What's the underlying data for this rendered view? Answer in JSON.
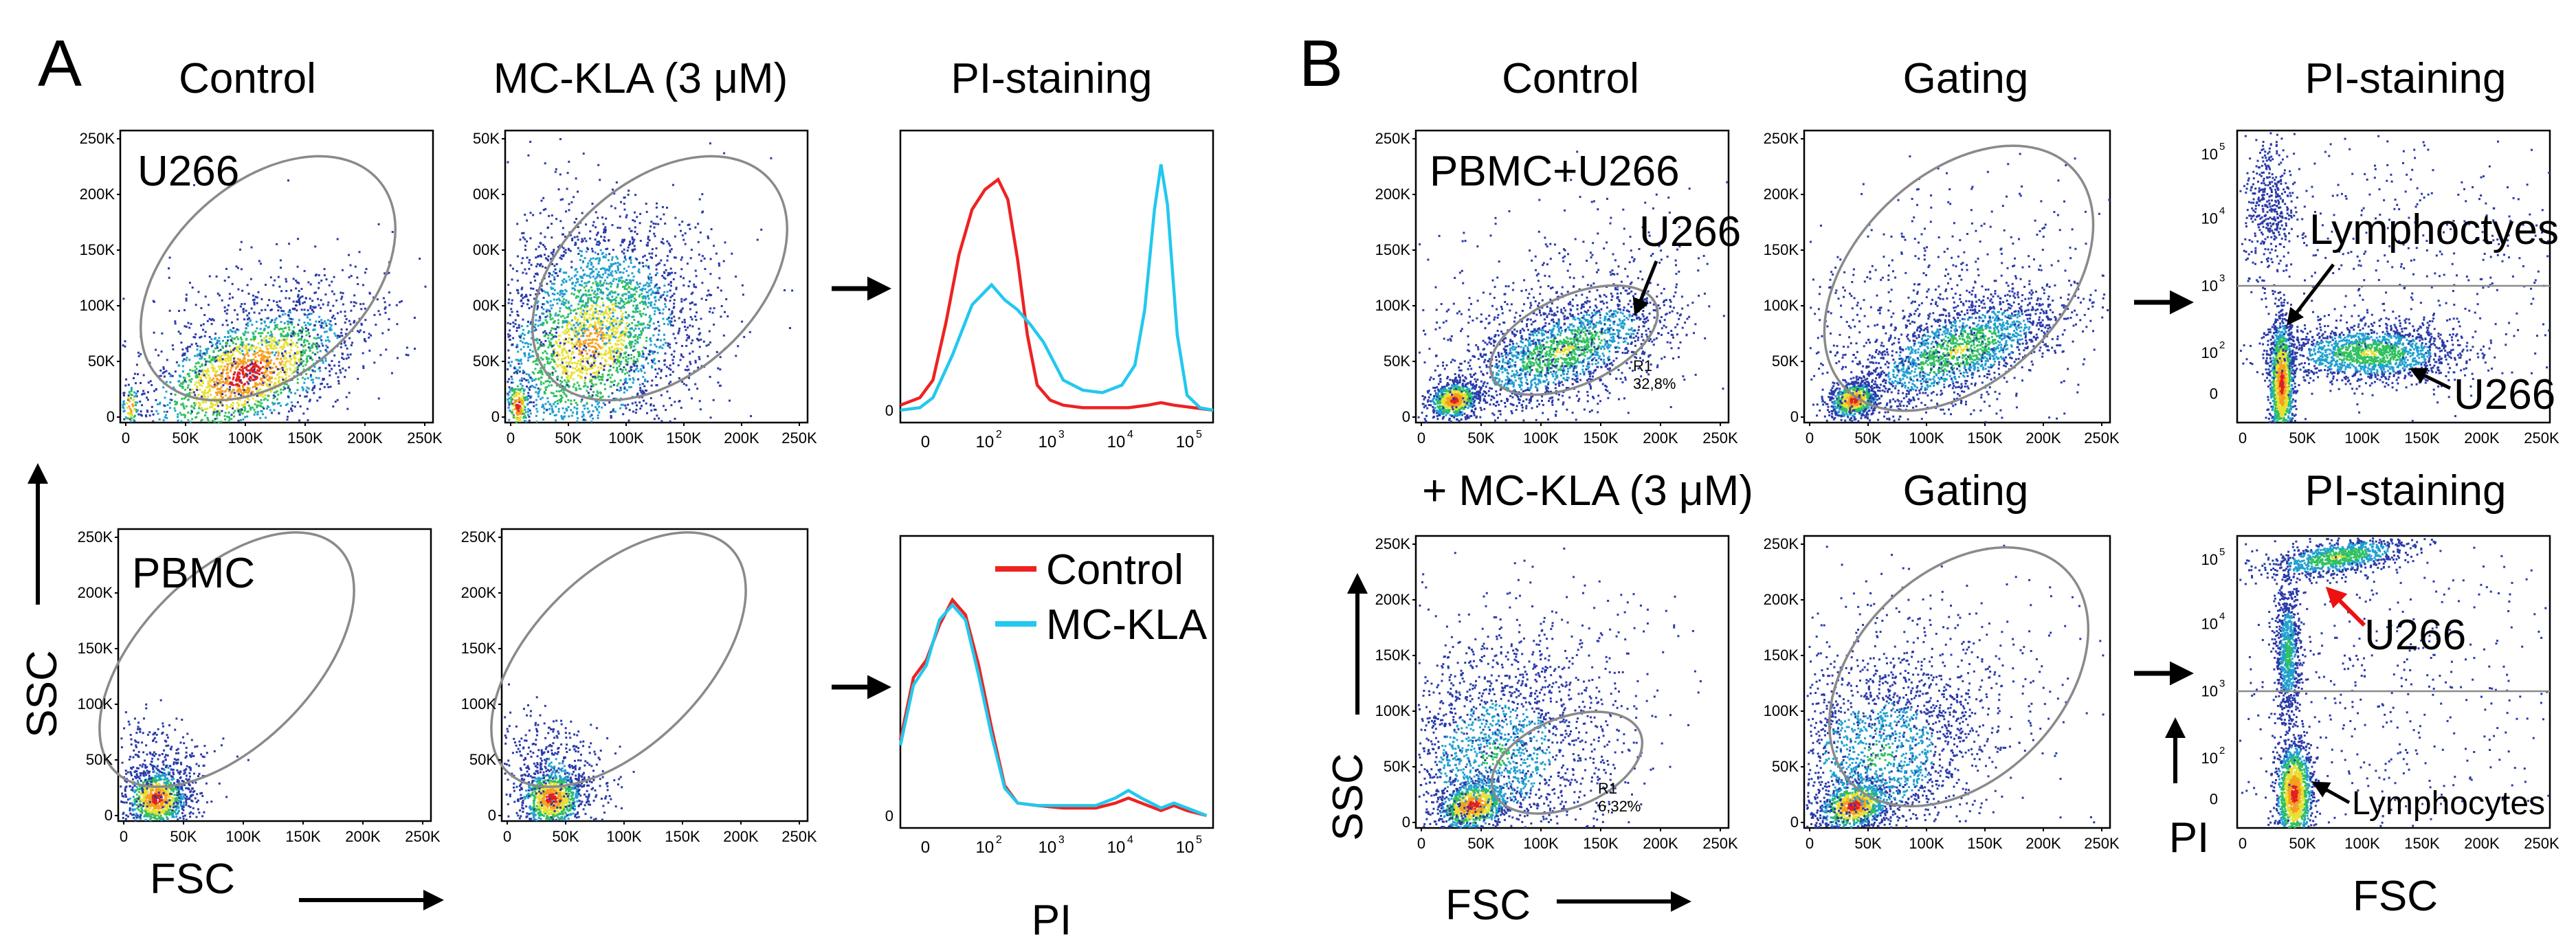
{
  "panels": {
    "A": {
      "letter": "A",
      "col_titles": [
        "Control",
        "MC-KLA (3 μM)",
        "PI-staining"
      ],
      "axis_ssc": "SSC",
      "axis_fsc": "FSC",
      "axis_pi": "PI",
      "sample_u266": "U266",
      "sample_pbmc": "PBMC",
      "legend": {
        "control": "Control",
        "mcla": "MC-KLA"
      }
    },
    "B": {
      "letter": "B",
      "top_titles": [
        "Control",
        "Gating",
        "PI-staining"
      ],
      "bottom_titles": [
        "+ MC-KLA  (3 μM)",
        "Gating",
        "PI-staining"
      ],
      "sample_label": "PBMC+U266",
      "u266_gate_label": "U266",
      "r1_top": {
        "name": "R1",
        "percent": "32,8%"
      },
      "r1_bottom": {
        "name": "R1",
        "percent": "6,32%"
      },
      "lymphoctyes": "Lymphoctyes",
      "u266_live": "U266",
      "u266_dead": "U266",
      "lymphocytes": "Lymphocytes",
      "axis_ssc": "SSC",
      "axis_fsc": "FSC",
      "axis_pi": "PI"
    }
  },
  "ticks": {
    "linear_y": [
      "0",
      "50K",
      "100K",
      "150K",
      "200K",
      "250K"
    ],
    "linear_y_cropped": [
      "0",
      "50K",
      "00K",
      "00K",
      "00K",
      "50K"
    ],
    "linear_x": [
      "0",
      "50K",
      "100K",
      "150K",
      "200K",
      "250K"
    ],
    "log_x": [
      "0",
      "10",
      "10",
      "10",
      "10"
    ],
    "log_exp": [
      "2",
      "3",
      "4",
      "5"
    ],
    "log_y": [
      "0",
      "10",
      "10",
      "10",
      "10"
    ],
    "hist_zero": "0"
  },
  "colors": {
    "control_red": "#ee2222",
    "mcla_cyan": "#22c8ee",
    "arrow_red": "#ee1111",
    "gate_gray": "#8a8a8a"
  },
  "chart_data": {
    "type": "histogram",
    "histograms": [
      {
        "panel": "A-top PI-staining (U266)",
        "xscale": "log",
        "xlim": [
          0.5,
          5.3
        ],
        "ylim": [
          0,
          1
        ],
        "series": [
          {
            "name": "Control",
            "color": "#ee2222",
            "x": [
              0.5,
              0.8,
              1.0,
              1.2,
              1.4,
              1.6,
              1.8,
              2.0,
              2.15,
              2.3,
              2.45,
              2.6,
              2.8,
              3.0,
              3.3,
              3.6,
              4.0,
              4.3,
              4.5,
              4.7,
              5.0,
              5.3
            ],
            "y": [
              0.02,
              0.05,
              0.12,
              0.35,
              0.62,
              0.8,
              0.88,
              0.92,
              0.84,
              0.6,
              0.3,
              0.1,
              0.04,
              0.02,
              0.01,
              0.01,
              0.01,
              0.02,
              0.03,
              0.02,
              0.01,
              0.0
            ]
          },
          {
            "name": "MC-KLA",
            "color": "#22c8ee",
            "x": [
              0.5,
              0.8,
              1.0,
              1.3,
              1.6,
              1.9,
              2.1,
              2.3,
              2.5,
              2.7,
              3.0,
              3.3,
              3.6,
              3.9,
              4.1,
              4.25,
              4.4,
              4.5,
              4.6,
              4.75,
              4.9,
              5.1,
              5.3
            ],
            "y": [
              0.0,
              0.01,
              0.05,
              0.22,
              0.42,
              0.5,
              0.44,
              0.4,
              0.34,
              0.27,
              0.12,
              0.08,
              0.07,
              0.1,
              0.18,
              0.4,
              0.8,
              0.98,
              0.82,
              0.3,
              0.06,
              0.01,
              0.0
            ]
          }
        ]
      },
      {
        "panel": "A-bottom PI-staining (PBMC)",
        "xscale": "log",
        "xlim": [
          0.5,
          5.3
        ],
        "ylim": [
          0,
          1
        ],
        "series": [
          {
            "name": "Control",
            "color": "#ee2222",
            "x": [
              0.5,
              0.7,
              0.9,
              1.1,
              1.3,
              1.5,
              1.7,
              1.9,
              2.1,
              2.3,
              2.6,
              3.0,
              3.5,
              3.8,
              4.0,
              4.2,
              4.5,
              4.7,
              4.9,
              5.2
            ],
            "y": [
              0.3,
              0.55,
              0.62,
              0.76,
              0.86,
              0.8,
              0.6,
              0.35,
              0.12,
              0.05,
              0.04,
              0.03,
              0.03,
              0.05,
              0.07,
              0.05,
              0.02,
              0.04,
              0.02,
              0.0
            ]
          },
          {
            "name": "MC-KLA",
            "color": "#22c8ee",
            "x": [
              0.5,
              0.7,
              0.9,
              1.1,
              1.3,
              1.5,
              1.7,
              1.9,
              2.1,
              2.3,
              2.6,
              3.0,
              3.5,
              3.8,
              4.0,
              4.2,
              4.5,
              4.7,
              4.9,
              5.2
            ],
            "y": [
              0.28,
              0.52,
              0.6,
              0.78,
              0.84,
              0.78,
              0.56,
              0.32,
              0.11,
              0.05,
              0.04,
              0.04,
              0.04,
              0.07,
              0.1,
              0.07,
              0.03,
              0.05,
              0.03,
              0.0
            ]
          }
        ]
      }
    ],
    "gates": [
      {
        "panel": "A Control U266",
        "center": [
          140,
          140
        ],
        "semi_axes": [
          120,
          85
        ],
        "rotation_deg": 40
      },
      {
        "panel": "B Control R1",
        "center": [
          125,
          62
        ],
        "semi_axes": [
          62,
          30
        ],
        "rotation_deg": 24,
        "label": "R1 32,8%"
      },
      {
        "panel": "B +MC-KLA R1",
        "center": [
          130,
          40
        ],
        "semi_axes": [
          55,
          30
        ],
        "rotation_deg": 22,
        "label": "R1 6,32%"
      }
    ]
  }
}
